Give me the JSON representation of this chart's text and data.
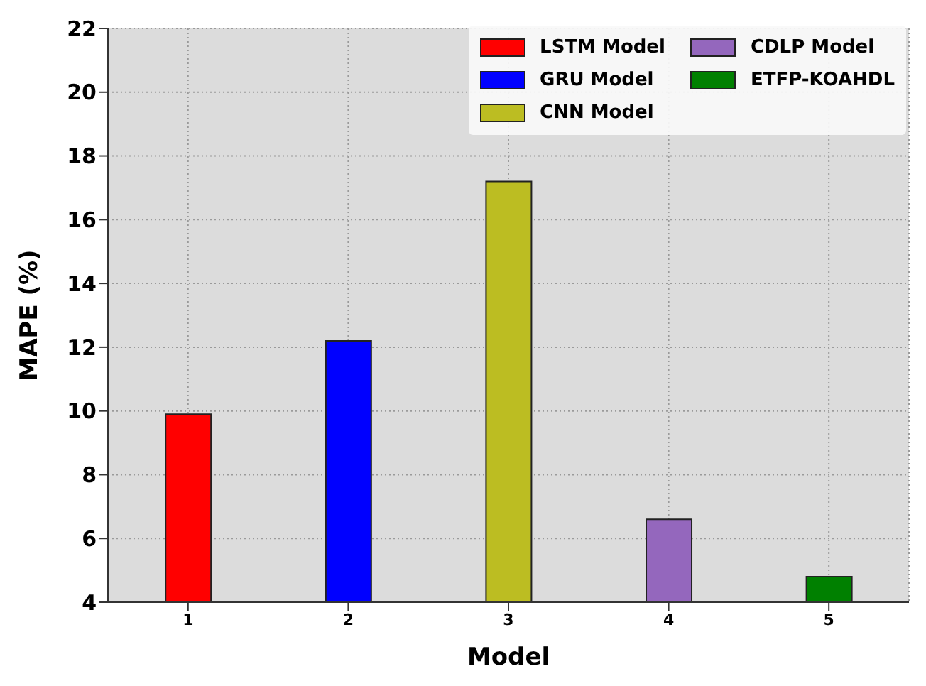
{
  "chart_data": {
    "type": "bar",
    "xlabel": "Model",
    "ylabel": "MAPE (%)",
    "categories": [
      "1",
      "2",
      "3",
      "4",
      "5"
    ],
    "series": [
      {
        "name": "LSTM Model",
        "color": "#ff0000",
        "values": [
          9.9,
          null,
          null,
          null,
          null
        ]
      },
      {
        "name": "GRU Model",
        "color": "#0000ff",
        "values": [
          null,
          12.2,
          null,
          null,
          null
        ]
      },
      {
        "name": "CNN Model",
        "color": "#bcbd22",
        "values": [
          null,
          null,
          17.2,
          null,
          null
        ]
      },
      {
        "name": "CDLP Model",
        "color": "#9467bd",
        "values": [
          null,
          null,
          null,
          6.6,
          null
        ]
      },
      {
        "name": "ETFP-KOAHDL",
        "color": "#008000",
        "values": [
          null,
          null,
          null,
          null,
          4.8
        ]
      }
    ],
    "ylim": [
      4,
      22
    ],
    "yticks": [
      4,
      6,
      8,
      10,
      12,
      14,
      16,
      18,
      20,
      22
    ],
    "grid": true,
    "legend": "top right"
  }
}
